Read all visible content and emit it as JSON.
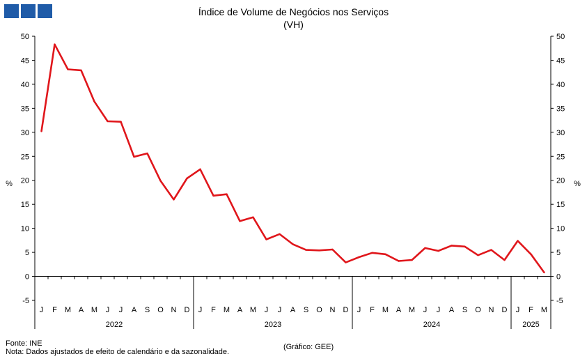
{
  "header": {
    "logo_icon": "gee-logo-icon",
    "logo_color": "#1f5ba8"
  },
  "chart_data": {
    "type": "line",
    "title": "Índice de Volume de Negócios nos Serviços",
    "subtitle": "(VH)",
    "ylabel_left": "%",
    "ylabel_right": "%",
    "ylim": [
      -5,
      50
    ],
    "yticks": [
      -5,
      0,
      5,
      10,
      15,
      20,
      25,
      30,
      35,
      40,
      45,
      50
    ],
    "grid": false,
    "legend": "none",
    "month_labels": [
      "J",
      "F",
      "M",
      "A",
      "M",
      "J",
      "J",
      "A",
      "S",
      "O",
      "N",
      "D",
      "J",
      "F",
      "M",
      "A",
      "M",
      "J",
      "J",
      "A",
      "S",
      "O",
      "N",
      "D",
      "J",
      "F",
      "M",
      "A",
      "M",
      "J",
      "J",
      "A",
      "S",
      "O",
      "N",
      "D",
      "J",
      "F",
      "M"
    ],
    "years": [
      {
        "label": "2022",
        "months": 12
      },
      {
        "label": "2023",
        "months": 12
      },
      {
        "label": "2024",
        "months": 12
      },
      {
        "label": "2025",
        "months": 3
      }
    ],
    "series": [
      {
        "color": "#e0161b",
        "values": [
          30.2,
          48.3,
          43.1,
          42.9,
          36.4,
          32.3,
          32.2,
          24.9,
          25.6,
          19.9,
          16.0,
          20.4,
          22.3,
          16.8,
          17.1,
          11.5,
          12.3,
          7.7,
          8.8,
          6.7,
          5.5,
          5.4,
          5.6,
          2.9,
          4.0,
          4.9,
          4.6,
          3.2,
          3.4,
          5.9,
          5.3,
          6.4,
          6.2,
          4.4,
          5.5,
          3.4,
          7.4,
          4.6,
          0.8
        ]
      }
    ]
  },
  "footer": {
    "source": "Fonte: INE",
    "note": "Nota: Dados ajustados de efeito de calendário e da sazonalidade.",
    "credit": "(Gráfico: GEE)"
  }
}
